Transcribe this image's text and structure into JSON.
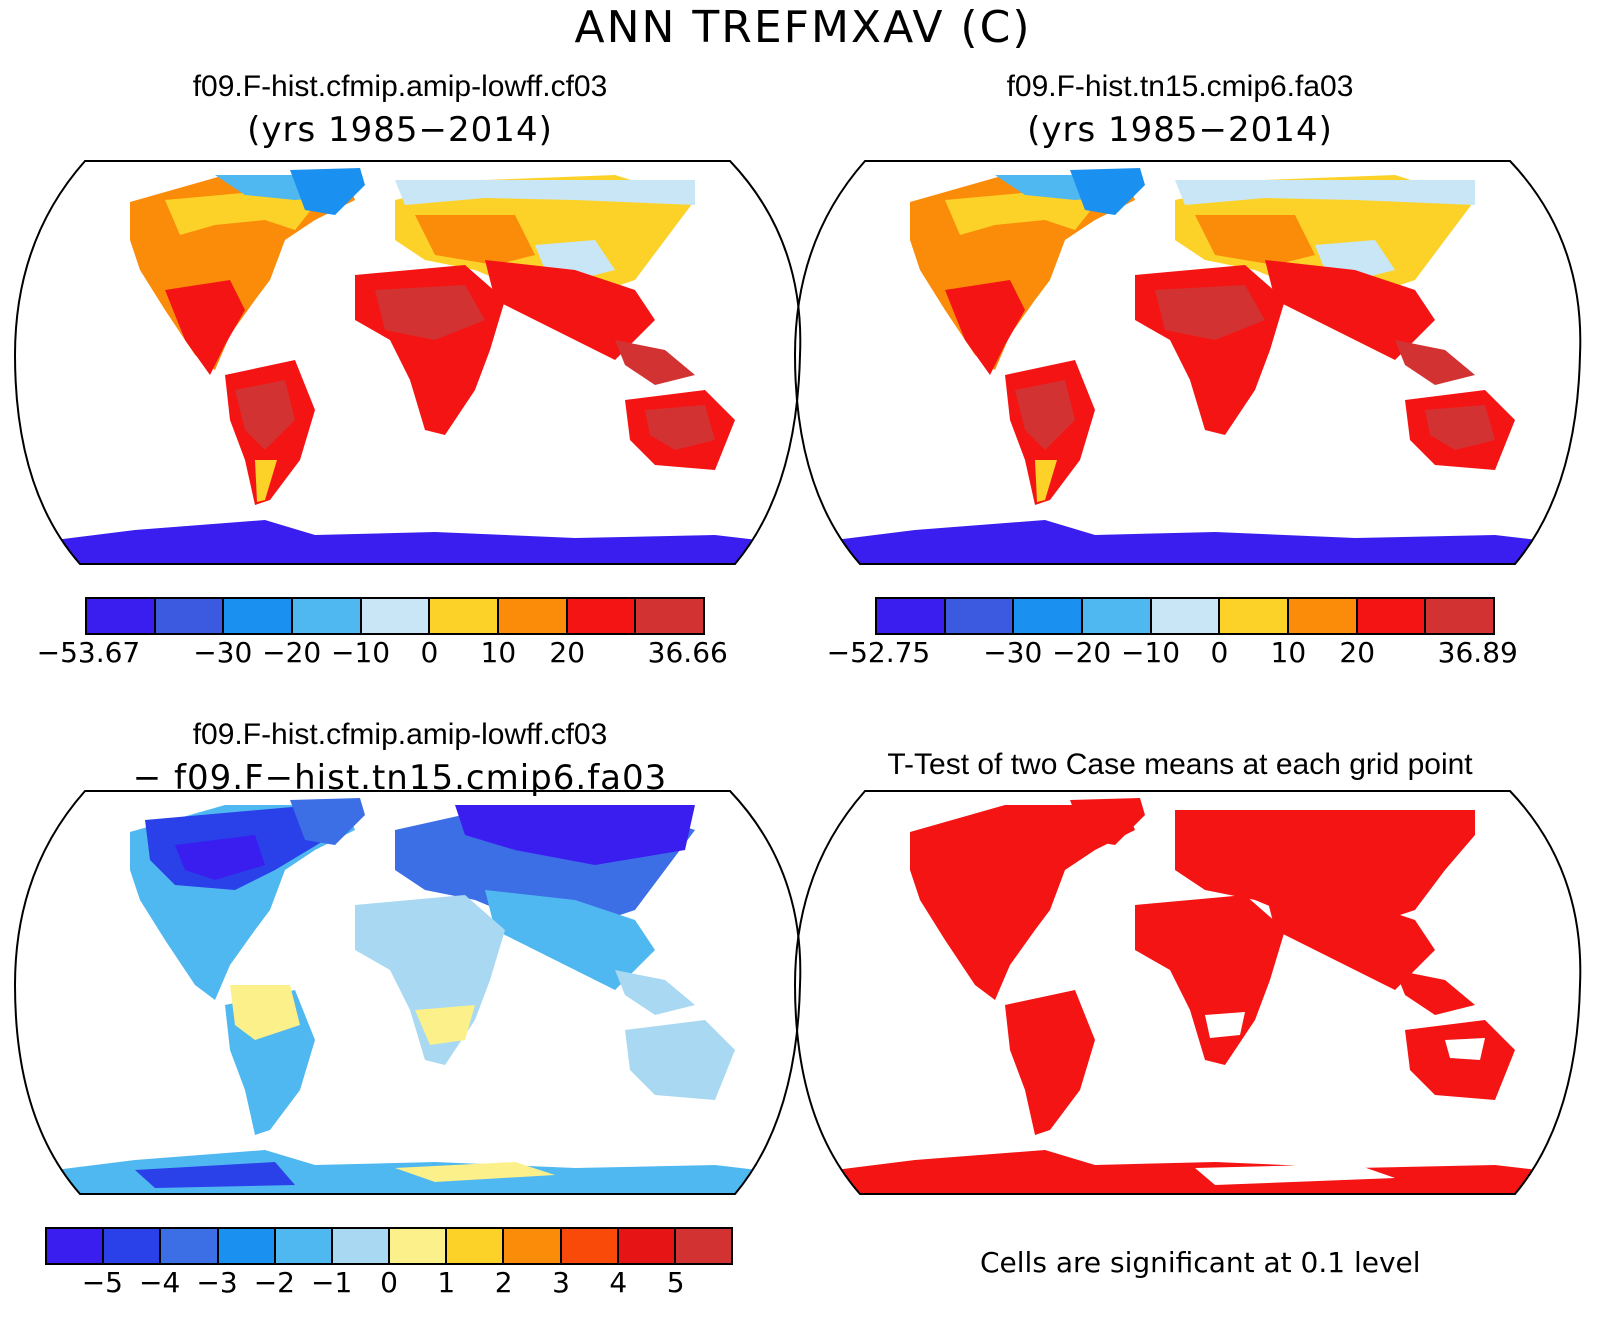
{
  "title": "ANN TREFMXAV (C)",
  "panels": {
    "p1": {
      "title": "f09.F-hist.cfmip.amip-lowff.cf03",
      "subtitle": "(yrs 1985−2014)"
    },
    "p2": {
      "title": "f09.F-hist.tn15.cmip6.fa03",
      "subtitle": "(yrs 1985−2014)"
    },
    "p3": {
      "title": "f09.F-hist.cfmip.amip-lowff.cf03",
      "subtitle": "− f09.F−hist.tn15.cmip6.fa03"
    },
    "p4": {
      "title": "T-Test of two Case means at each grid point",
      "note": "Cells are significant at 0.1 level"
    }
  },
  "colorbars": {
    "cb1": {
      "colors": [
        "#3a1ef0",
        "#3c5ae0",
        "#1a90f0",
        "#50b8f0",
        "#c8e6f5",
        "#fcd228",
        "#fa8c0a",
        "#f51414",
        "#d23232"
      ],
      "labels": [
        "−53.67",
        "−30",
        "−20",
        "−10",
        "0",
        "10",
        "20",
        "36.66"
      ]
    },
    "cb2": {
      "colors": [
        "#3a1ef0",
        "#3c5ae0",
        "#1a90f0",
        "#50b8f0",
        "#c8e6f5",
        "#fcd228",
        "#fa8c0a",
        "#f51414",
        "#d23232"
      ],
      "labels": [
        "−52.75",
        "−30",
        "−20",
        "−10",
        "0",
        "10",
        "20",
        "36.89"
      ]
    },
    "cb3": {
      "colors": [
        "#3a1ef0",
        "#2a40e8",
        "#3c6ee6",
        "#1a90f0",
        "#50b8f0",
        "#a8d8f2",
        "#fcf08a",
        "#fcd228",
        "#fa8c0a",
        "#fa4a0a",
        "#e61414",
        "#d23232"
      ],
      "labels": [
        "−5",
        "−4",
        "−3",
        "−2",
        "−1",
        "0",
        "1",
        "2",
        "3",
        "4",
        "5"
      ]
    }
  }
}
